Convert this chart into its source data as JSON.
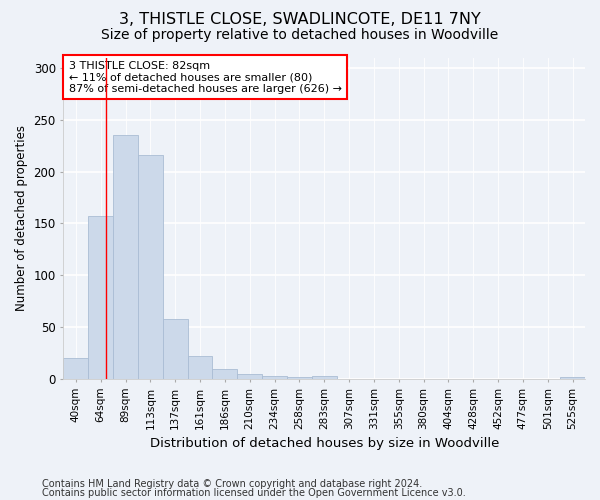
{
  "title1": "3, THISTLE CLOSE, SWADLINCOTE, DE11 7NY",
  "title2": "Size of property relative to detached houses in Woodville",
  "xlabel": "Distribution of detached houses by size in Woodville",
  "ylabel": "Number of detached properties",
  "bar_values": [
    20,
    157,
    235,
    216,
    58,
    22,
    10,
    5,
    3,
    2,
    3,
    0,
    0,
    0,
    0,
    0,
    0,
    0,
    0,
    0,
    2
  ],
  "bin_labels": [
    "40sqm",
    "64sqm",
    "89sqm",
    "113sqm",
    "137sqm",
    "161sqm",
    "186sqm",
    "210sqm",
    "234sqm",
    "258sqm",
    "283sqm",
    "307sqm",
    "331sqm",
    "355sqm",
    "380sqm",
    "404sqm",
    "428sqm",
    "452sqm",
    "477sqm",
    "501sqm",
    "525sqm"
  ],
  "bar_color": "#ccd9ea",
  "bar_edge_color": "#aabdd4",
  "annotation_text": "3 THISTLE CLOSE: 82sqm\n← 11% of detached houses are smaller (80)\n87% of semi-detached houses are larger (626) →",
  "annotation_box_color": "white",
  "annotation_box_edge": "red",
  "red_line_color": "red",
  "ylim": [
    0,
    310
  ],
  "yticks": [
    0,
    50,
    100,
    150,
    200,
    250,
    300
  ],
  "footer1": "Contains HM Land Registry data © Crown copyright and database right 2024.",
  "footer2": "Contains public sector information licensed under the Open Government Licence v3.0.",
  "background_color": "#eef2f8",
  "grid_color": "white",
  "title1_fontsize": 11.5,
  "title2_fontsize": 10,
  "xlabel_fontsize": 9.5,
  "ylabel_fontsize": 8.5,
  "tick_fontsize": 7.5,
  "annot_fontsize": 8,
  "footer_fontsize": 7
}
